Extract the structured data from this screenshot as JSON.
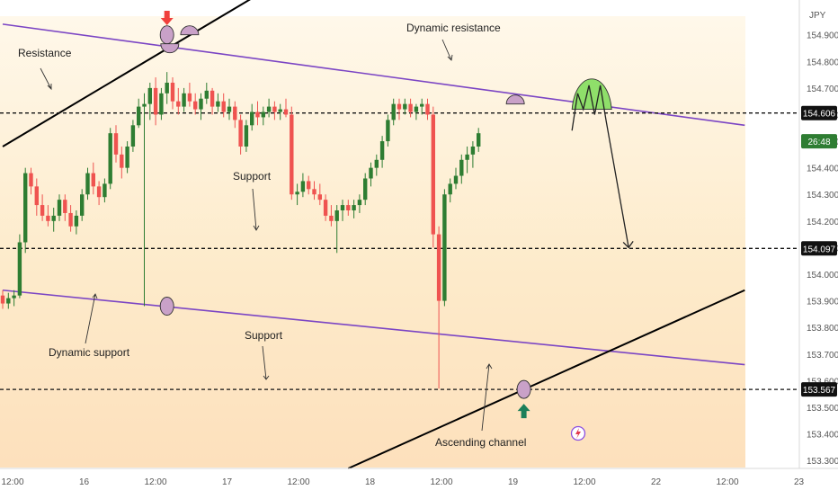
{
  "chart_data": {
    "type": "candlestick",
    "currency_label": "JPY",
    "x_tick_labels": [
      "12:00",
      "16",
      "12:00",
      "17",
      "12:00",
      "18",
      "12:00",
      "19",
      "12:00",
      "22",
      "12:00",
      "23"
    ],
    "y_tick_labels": [
      "153.300",
      "153.400",
      "153.500",
      "153.600",
      "153.700",
      "153.800",
      "153.900",
      "154.000",
      "154.100",
      "154.200",
      "154.300",
      "154.400",
      "154.500",
      "154.600",
      "154.700",
      "154.800",
      "154.900"
    ],
    "ylim": [
      153.27,
      154.97
    ],
    "price_tags": [
      {
        "value": 154.606,
        "label": "154.606"
      },
      {
        "value": 154.097,
        "label": "154.097"
      },
      {
        "value": 153.567,
        "label": "153.567"
      }
    ],
    "current_price": {
      "value": 154.5,
      "label": "26:48",
      "color": "#2e7d32"
    },
    "horizontal_levels": [
      154.606,
      154.097,
      153.567
    ],
    "annotations": {
      "resistance": "Resistance",
      "dynamic_resistance": "Dynamic resistance",
      "support_upper": "Support",
      "support_lower": "Support",
      "dynamic_support": "Dynamic support",
      "ascending_channel": "Ascending channel"
    },
    "colors": {
      "up": "#2e7d32",
      "down": "#ef5350",
      "channel_purple": "#7b45c4",
      "trend_black": "#000000",
      "marker_red": "#f0403c",
      "marker_green": "#1b7f5a",
      "target_green": "#8fdf6a"
    },
    "candles": [
      [
        153.92,
        153.94,
        153.87,
        153.89
      ],
      [
        153.89,
        153.93,
        153.87,
        153.91
      ],
      [
        153.91,
        153.94,
        153.88,
        153.92
      ],
      [
        153.92,
        154.15,
        153.91,
        154.12
      ],
      [
        154.12,
        154.4,
        154.08,
        154.38
      ],
      [
        154.38,
        154.4,
        154.3,
        154.33
      ],
      [
        154.33,
        154.36,
        154.22,
        154.26
      ],
      [
        154.26,
        154.3,
        154.2,
        154.22
      ],
      [
        154.22,
        154.26,
        154.18,
        154.2
      ],
      [
        154.2,
        154.25,
        154.16,
        154.22
      ],
      [
        154.22,
        154.3,
        154.2,
        154.28
      ],
      [
        154.28,
        154.3,
        154.2,
        154.23
      ],
      [
        154.23,
        154.26,
        154.16,
        154.18
      ],
      [
        154.18,
        154.24,
        154.15,
        154.22
      ],
      [
        154.22,
        154.32,
        154.2,
        154.3
      ],
      [
        154.3,
        154.4,
        154.28,
        154.38
      ],
      [
        154.38,
        154.42,
        154.3,
        154.33
      ],
      [
        154.33,
        154.35,
        154.26,
        154.29
      ],
      [
        154.29,
        154.36,
        154.27,
        154.34
      ],
      [
        154.34,
        154.55,
        154.32,
        154.53
      ],
      [
        154.53,
        154.56,
        154.42,
        154.45
      ],
      [
        154.45,
        154.48,
        154.36,
        154.4
      ],
      [
        154.4,
        154.5,
        154.38,
        154.48
      ],
      [
        154.48,
        154.58,
        154.46,
        154.56
      ],
      [
        154.56,
        154.66,
        154.55,
        154.63
      ],
      [
        154.63,
        154.68,
        153.88,
        154.64
      ],
      [
        154.64,
        154.72,
        154.58,
        154.7
      ],
      [
        154.7,
        154.74,
        154.56,
        154.6
      ],
      [
        154.6,
        154.7,
        154.58,
        154.68
      ],
      [
        154.68,
        154.76,
        154.64,
        154.72
      ],
      [
        154.72,
        154.74,
        154.62,
        154.65
      ],
      [
        154.65,
        154.7,
        154.6,
        154.63
      ],
      [
        154.63,
        154.7,
        154.61,
        154.68
      ],
      [
        154.68,
        154.72,
        154.63,
        154.65
      ],
      [
        154.65,
        154.68,
        154.6,
        154.62
      ],
      [
        154.62,
        154.68,
        154.58,
        154.66
      ],
      [
        154.66,
        154.72,
        154.64,
        154.69
      ],
      [
        154.69,
        154.7,
        154.6,
        154.63
      ],
      [
        154.63,
        154.68,
        154.61,
        154.65
      ],
      [
        154.65,
        154.68,
        154.59,
        154.61
      ],
      [
        154.61,
        154.66,
        154.58,
        154.63
      ],
      [
        154.63,
        154.65,
        154.55,
        154.58
      ],
      [
        154.58,
        154.6,
        154.45,
        154.48
      ],
      [
        154.48,
        154.58,
        154.46,
        154.56
      ],
      [
        154.56,
        154.64,
        154.54,
        154.61
      ],
      [
        154.61,
        154.65,
        154.56,
        154.59
      ],
      [
        154.59,
        154.63,
        154.56,
        154.61
      ],
      [
        154.61,
        154.66,
        154.59,
        154.63
      ],
      [
        154.63,
        154.65,
        154.58,
        154.61
      ],
      [
        154.61,
        154.64,
        154.58,
        154.62
      ],
      [
        154.62,
        154.66,
        154.59,
        154.6
      ],
      [
        154.6,
        154.63,
        154.28,
        154.3
      ],
      [
        154.3,
        154.34,
        154.26,
        154.31
      ],
      [
        154.31,
        154.38,
        154.29,
        154.35
      ],
      [
        154.35,
        154.37,
        154.3,
        154.32
      ],
      [
        154.32,
        154.35,
        154.28,
        154.3
      ],
      [
        154.3,
        154.34,
        154.26,
        154.28
      ],
      [
        154.28,
        154.3,
        154.2,
        154.22
      ],
      [
        154.22,
        154.26,
        154.18,
        154.2
      ],
      [
        154.2,
        154.26,
        154.08,
        154.24
      ],
      [
        154.24,
        154.28,
        154.2,
        154.26
      ],
      [
        154.26,
        154.28,
        154.22,
        154.24
      ],
      [
        154.24,
        154.28,
        154.21,
        154.26
      ],
      [
        154.26,
        154.3,
        154.23,
        154.28
      ],
      [
        154.28,
        154.38,
        154.26,
        154.36
      ],
      [
        154.36,
        154.42,
        154.33,
        154.4
      ],
      [
        154.4,
        154.45,
        154.37,
        154.43
      ],
      [
        154.43,
        154.52,
        154.4,
        154.5
      ],
      [
        154.5,
        154.6,
        154.48,
        154.58
      ],
      [
        154.58,
        154.66,
        154.56,
        154.64
      ],
      [
        154.64,
        154.66,
        154.58,
        154.62
      ],
      [
        154.62,
        154.66,
        154.6,
        154.64
      ],
      [
        154.64,
        154.66,
        154.59,
        154.61
      ],
      [
        154.61,
        154.64,
        154.58,
        154.63
      ],
      [
        154.63,
        154.66,
        154.6,
        154.64
      ],
      [
        154.64,
        154.66,
        154.58,
        154.6
      ],
      [
        154.6,
        154.63,
        154.1,
        154.15
      ],
      [
        154.15,
        154.18,
        153.57,
        153.9
      ],
      [
        153.9,
        154.32,
        153.88,
        154.3
      ],
      [
        154.3,
        154.36,
        154.27,
        154.34
      ],
      [
        154.34,
        154.4,
        154.32,
        154.37
      ],
      [
        154.37,
        154.45,
        154.34,
        154.43
      ],
      [
        154.43,
        154.48,
        154.38,
        154.45
      ],
      [
        154.45,
        154.5,
        154.4,
        154.48
      ],
      [
        154.48,
        154.55,
        154.46,
        154.53
      ]
    ],
    "x_index_range": [
      0,
      131
    ],
    "overlays": {
      "upper_purple_channel": [
        [
          0,
          154.94
        ],
        [
          131,
          154.56
        ]
      ],
      "lower_purple_channel": [
        [
          0,
          153.94
        ],
        [
          131,
          153.66
        ]
      ],
      "upper_black_trendline": [
        [
          0,
          154.48
        ],
        [
          45,
          155.05
        ]
      ],
      "lower_black_trendline": [
        [
          61,
          153.27
        ],
        [
          131,
          153.94
        ]
      ]
    },
    "projection_path": [
      [
        100.5,
        154.54
      ],
      [
        101.5,
        154.68
      ],
      [
        102.5,
        154.62
      ],
      [
        103.5,
        154.71
      ],
      [
        104.5,
        154.6
      ],
      [
        105.5,
        154.71
      ],
      [
        106.5,
        154.58
      ],
      [
        110.5,
        154.1
      ]
    ]
  }
}
